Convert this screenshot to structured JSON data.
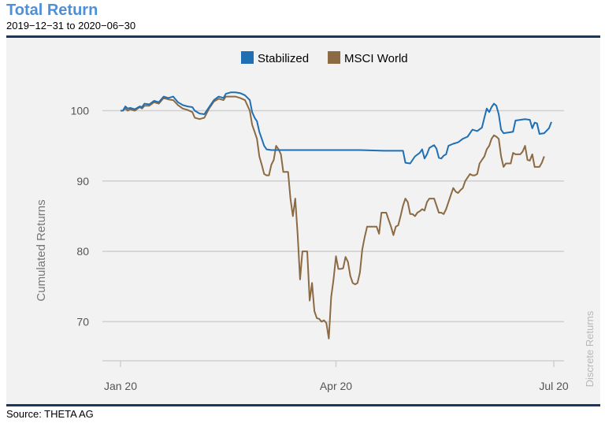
{
  "header": {
    "title": "Total Return",
    "subtitle": "2019−12−31 to 2020−06−30"
  },
  "footer": {
    "source": "Source: THETA AG"
  },
  "watermark": "Discrete Returns",
  "colors": {
    "stabilized": "#1f6fb5",
    "msci": "#8b6a44",
    "title": "#4f8fd6",
    "rule": "#17375e"
  },
  "chart_data": {
    "type": "line",
    "ylabel": "Cumulated Returns",
    "xlabel": "",
    "ylim": [
      65,
      107
    ],
    "yticks": [
      70,
      80,
      90,
      100
    ],
    "xticks": [
      {
        "label": "Jan 20",
        "x": 0
      },
      {
        "label": "Apr 20",
        "x": 90
      },
      {
        "label": "Jul 20",
        "x": 181
      }
    ],
    "xlim": [
      0,
      181
    ],
    "grid": true,
    "legend_position": "top-center",
    "series": [
      {
        "name": "Stabilized",
        "color": "#1f6fb5",
        "points": [
          [
            0,
            100
          ],
          [
            1,
            100
          ],
          [
            2,
            100.6
          ],
          [
            3,
            100.3
          ],
          [
            4,
            100.4
          ],
          [
            6,
            100.2
          ],
          [
            8,
            100.6
          ],
          [
            9,
            100.5
          ],
          [
            10,
            101
          ],
          [
            12,
            100.9
          ],
          [
            14,
            101.4
          ],
          [
            16,
            101.2
          ],
          [
            18,
            102
          ],
          [
            20,
            101.8
          ],
          [
            22,
            102
          ],
          [
            24,
            101.2
          ],
          [
            26,
            100.8
          ],
          [
            28,
            100.6
          ],
          [
            30,
            100.5
          ],
          [
            31,
            100
          ],
          [
            33,
            99.6
          ],
          [
            35,
            99.5
          ],
          [
            37,
            100.5
          ],
          [
            39,
            101.5
          ],
          [
            41,
            102
          ],
          [
            43,
            101.8
          ],
          [
            44,
            102.4
          ],
          [
            46,
            102.6
          ],
          [
            48,
            102.6
          ],
          [
            50,
            102.5
          ],
          [
            52,
            102.2
          ],
          [
            54,
            101.5
          ],
          [
            55,
            99.8
          ],
          [
            56,
            99
          ],
          [
            57,
            98.5
          ],
          [
            58,
            97
          ],
          [
            59,
            96
          ],
          [
            60,
            95
          ],
          [
            61,
            94.5
          ],
          [
            63,
            94.4
          ],
          [
            70,
            94.4
          ],
          [
            80,
            94.4
          ],
          [
            90,
            94.4
          ],
          [
            100,
            94.4
          ],
          [
            110,
            94.3
          ],
          [
            118,
            94.3
          ],
          [
            119,
            92.6
          ],
          [
            121,
            92.5
          ],
          [
            123,
            93.5
          ],
          [
            125,
            94
          ],
          [
            126,
            94.5
          ],
          [
            127,
            93.2
          ],
          [
            128,
            93.8
          ],
          [
            129,
            94.7
          ],
          [
            131,
            95.1
          ],
          [
            132,
            94.6
          ],
          [
            133,
            93.3
          ],
          [
            134,
            93.2
          ],
          [
            135,
            93.6
          ],
          [
            136,
            93.8
          ],
          [
            137,
            95
          ],
          [
            139,
            95.3
          ],
          [
            141,
            95.5
          ],
          [
            143,
            96
          ],
          [
            145,
            96.3
          ],
          [
            147,
            97.3
          ],
          [
            149,
            97.1
          ],
          [
            151,
            97.6
          ],
          [
            152,
            99
          ],
          [
            153,
            100.3
          ],
          [
            154,
            99.8
          ],
          [
            155,
            100.5
          ],
          [
            156,
            101
          ],
          [
            157,
            100.7
          ],
          [
            158,
            99.5
          ],
          [
            159,
            97.3
          ],
          [
            160,
            96.8
          ],
          [
            162,
            96.9
          ],
          [
            164,
            97
          ],
          [
            165,
            98.6
          ],
          [
            167,
            98.7
          ],
          [
            169,
            98.8
          ],
          [
            171,
            98.7
          ],
          [
            172,
            97.5
          ],
          [
            173,
            98.3
          ],
          [
            174,
            98.2
          ],
          [
            175,
            96.7
          ],
          [
            177,
            96.8
          ],
          [
            179,
            97.5
          ],
          [
            180,
            98.4
          ]
        ]
      },
      {
        "name": "MSCI World",
        "color": "#8b6a44",
        "points": [
          [
            0,
            100
          ],
          [
            1,
            100
          ],
          [
            2,
            100.3
          ],
          [
            3,
            100
          ],
          [
            4,
            100.2
          ],
          [
            6,
            100
          ],
          [
            8,
            100.5
          ],
          [
            9,
            100.3
          ],
          [
            10,
            100.7
          ],
          [
            12,
            100.7
          ],
          [
            14,
            101.2
          ],
          [
            16,
            101
          ],
          [
            18,
            101.8
          ],
          [
            20,
            101.6
          ],
          [
            22,
            101.5
          ],
          [
            24,
            100.8
          ],
          [
            26,
            100.3
          ],
          [
            28,
            100.1
          ],
          [
            30,
            99.8
          ],
          [
            31,
            99
          ],
          [
            33,
            98.8
          ],
          [
            35,
            99
          ],
          [
            37,
            100.3
          ],
          [
            39,
            101.3
          ],
          [
            41,
            101.7
          ],
          [
            43,
            101.5
          ],
          [
            44,
            102
          ],
          [
            46,
            102
          ],
          [
            48,
            102
          ],
          [
            50,
            101.8
          ],
          [
            52,
            101.5
          ],
          [
            54,
            100
          ],
          [
            55,
            98
          ],
          [
            56,
            97
          ],
          [
            57,
            96
          ],
          [
            58,
            93.5
          ],
          [
            59,
            92.3
          ],
          [
            60,
            91
          ],
          [
            61,
            90.8
          ],
          [
            62,
            90.8
          ],
          [
            63,
            92.3
          ],
          [
            64,
            93
          ],
          [
            65,
            95
          ],
          [
            66,
            94.5
          ],
          [
            67,
            93.8
          ],
          [
            68,
            91.3
          ],
          [
            70,
            91.3
          ],
          [
            71,
            87.5
          ],
          [
            72,
            85
          ],
          [
            73,
            87.5
          ],
          [
            74,
            82.3
          ],
          [
            75,
            76
          ],
          [
            76,
            80
          ],
          [
            77,
            80
          ],
          [
            78,
            80
          ],
          [
            79,
            73
          ],
          [
            80,
            75.5
          ],
          [
            81,
            71.5
          ],
          [
            82,
            70.5
          ],
          [
            83,
            70.4
          ],
          [
            84,
            70
          ],
          [
            85,
            70.2
          ],
          [
            86,
            69.8
          ],
          [
            87,
            67.6
          ],
          [
            88,
            73.5
          ],
          [
            89,
            76
          ],
          [
            90,
            79.3
          ],
          [
            91,
            77.5
          ],
          [
            92,
            77.5
          ],
          [
            93,
            77.6
          ],
          [
            94,
            79.2
          ],
          [
            95,
            78.5
          ],
          [
            96,
            76.5
          ],
          [
            97,
            75.5
          ],
          [
            98,
            75.3
          ],
          [
            99,
            75.5
          ],
          [
            100,
            77
          ],
          [
            101,
            80.3
          ],
          [
            102,
            82
          ],
          [
            103,
            83.5
          ],
          [
            105,
            83.5
          ],
          [
            107,
            83.5
          ],
          [
            108,
            82.5
          ],
          [
            109,
            85.5
          ],
          [
            111,
            85.5
          ],
          [
            112,
            84.5
          ],
          [
            113,
            83.5
          ],
          [
            114,
            82.3
          ],
          [
            115,
            83.5
          ],
          [
            116,
            83.7
          ],
          [
            117,
            85
          ],
          [
            118,
            86.5
          ],
          [
            119,
            87.5
          ],
          [
            120,
            87
          ],
          [
            121,
            85.3
          ],
          [
            122,
            85.3
          ],
          [
            123,
            85
          ],
          [
            124,
            85.5
          ],
          [
            125,
            85.7
          ],
          [
            126,
            86
          ],
          [
            127,
            85.8
          ],
          [
            128,
            87
          ],
          [
            129,
            87.5
          ],
          [
            131,
            87.5
          ],
          [
            132,
            86.5
          ],
          [
            133,
            85.5
          ],
          [
            134,
            85.5
          ],
          [
            135,
            85.3
          ],
          [
            136,
            86
          ],
          [
            137,
            87
          ],
          [
            138,
            88
          ],
          [
            139,
            89
          ],
          [
            140,
            88.5
          ],
          [
            141,
            88.3
          ],
          [
            142,
            88.7
          ],
          [
            143,
            89
          ],
          [
            144,
            90
          ],
          [
            145,
            90.5
          ],
          [
            146,
            91
          ],
          [
            147,
            90.8
          ],
          [
            148,
            90.8
          ],
          [
            149,
            91
          ],
          [
            150,
            92.5
          ],
          [
            151,
            93
          ],
          [
            152,
            93.5
          ],
          [
            153,
            94.5
          ],
          [
            154,
            95
          ],
          [
            155,
            96
          ],
          [
            156,
            96.5
          ],
          [
            157,
            96.3
          ],
          [
            158,
            96
          ],
          [
            159,
            93.5
          ],
          [
            160,
            92
          ],
          [
            161,
            92.5
          ],
          [
            163,
            92.5
          ],
          [
            164,
            94
          ],
          [
            165,
            93.8
          ],
          [
            167,
            93.8
          ],
          [
            168,
            94.2
          ],
          [
            169,
            95
          ],
          [
            170,
            93
          ],
          [
            171,
            92.9
          ],
          [
            172,
            93.8
          ],
          [
            173,
            92
          ],
          [
            174,
            92
          ],
          [
            175,
            92
          ],
          [
            176,
            92.6
          ],
          [
            177,
            93.5
          ]
        ]
      }
    ]
  }
}
